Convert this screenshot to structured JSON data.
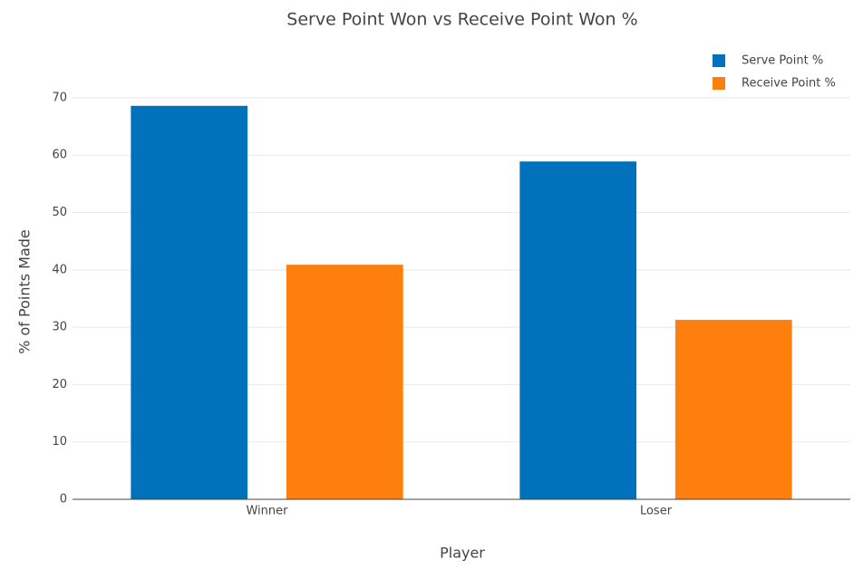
{
  "chart_data": {
    "type": "bar",
    "title": "Serve Point Won vs Receive Point Won %",
    "x_label": "Player",
    "y_label": "% of Points Made",
    "categories": [
      "Winner",
      "Loser"
    ],
    "series": [
      {
        "name": "Serve Point %",
        "color": "#0072bb",
        "values": [
          68.6,
          58.9
        ]
      },
      {
        "name": "Receive Point %",
        "color": "#ff7f0e",
        "values": [
          40.9,
          31.3
        ]
      }
    ],
    "ylim": [
      0,
      72.2
    ],
    "yticks": [
      0,
      10,
      20,
      30,
      40,
      50,
      60,
      70
    ],
    "grid": true,
    "legend": "top-right"
  }
}
